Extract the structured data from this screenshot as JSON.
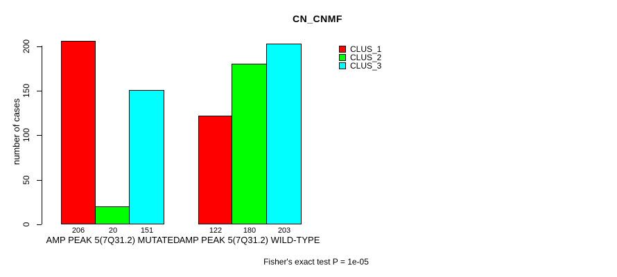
{
  "chart_data": {
    "type": "bar",
    "title": "CN_CNMF",
    "xlabel": "",
    "ylabel": "number of cases",
    "ylim": [
      0,
      200
    ],
    "yticks": [
      0,
      50,
      100,
      150,
      200
    ],
    "grid": false,
    "legend_position": "top-right",
    "background_color": "#ffffff",
    "categories": [
      "AMP PEAK 5(7Q31.2) MUTATED",
      "AMP PEAK 5(7Q31.2) WILD-TYPE"
    ],
    "series": [
      {
        "name": "CLUS_1",
        "color": "#ff0000",
        "values": [
          206,
          122
        ]
      },
      {
        "name": "CLUS_2",
        "color": "#00ff00",
        "values": [
          20,
          180
        ]
      },
      {
        "name": "CLUS_3",
        "color": "#00ffff",
        "values": [
          151,
          203
        ]
      }
    ],
    "bar_value_labels": [
      [
        206,
        20,
        151
      ],
      [
        122,
        180,
        203
      ]
    ],
    "annotation": "Fisher's exact test P = 1e-05"
  }
}
